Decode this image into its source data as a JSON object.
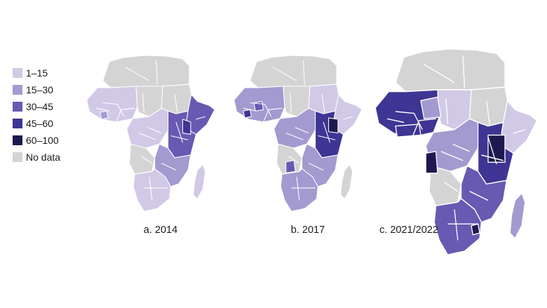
{
  "legend": {
    "items": [
      {
        "label": "1–15",
        "color": "#d1c9e6"
      },
      {
        "label": "15–30",
        "color": "#a39ad0"
      },
      {
        "label": "30–45",
        "color": "#6859b2"
      },
      {
        "label": "45–60",
        "color": "#3e3594"
      },
      {
        "label": "60–100",
        "color": "#1e1a4f"
      },
      {
        "label": "No data",
        "color": "#d4d4d4"
      }
    ]
  },
  "maps": [
    {
      "caption": "a. 2014"
    },
    {
      "caption": "b. 2017"
    },
    {
      "caption": "c. 2021/2022"
    }
  ]
}
